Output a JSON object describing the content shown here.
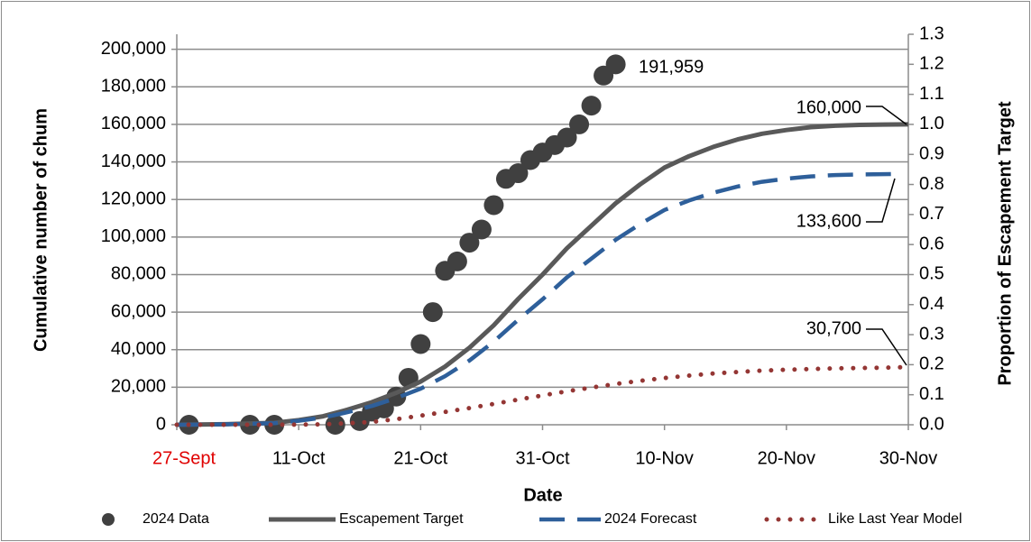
{
  "chart_data": {
    "type": "line",
    "x_label": "Date",
    "y_label": "Cumulative number of chum",
    "y2_label": "Proportion of Escapement Target",
    "xlim": [
      1,
      61
    ],
    "xticks": [
      {
        "value": 1,
        "label": "27-Sept"
      },
      {
        "value": 11,
        "label": "11-Oct"
      },
      {
        "value": 21,
        "label": "21-Oct"
      },
      {
        "value": 31,
        "label": "31-Oct"
      },
      {
        "value": 41,
        "label": "10-Nov"
      },
      {
        "value": 51,
        "label": "20-Nov"
      },
      {
        "value": 61,
        "label": "30-Nov"
      }
    ],
    "first_xtick_color": "#e00000",
    "ylim": [
      0,
      208000
    ],
    "yticks": [
      0,
      {
        "value": 20000,
        "label": "20,000"
      },
      {
        "value": 40000,
        "label": "40,000"
      },
      {
        "value": 60000,
        "label": "60,000"
      },
      {
        "value": 80000,
        "label": "80,000"
      },
      {
        "value": 100000,
        "label": "100,000"
      },
      {
        "value": 120000,
        "label": "120,000"
      },
      {
        "value": 140000,
        "label": "140,000"
      },
      {
        "value": 160000,
        "label": "160,000"
      },
      {
        "value": 180000,
        "label": "180,000"
      },
      {
        "value": 200000,
        "label": "200,000"
      }
    ],
    "y2lim": [
      0,
      1.3
    ],
    "y2ticks": [
      {
        "value": 0,
        "label": "0.0"
      },
      0.1,
      0.2,
      0.3,
      0.4,
      0.5,
      0.6,
      0.7,
      0.8,
      0.9,
      {
        "value": 1,
        "label": "1.0"
      },
      1.1,
      1.2,
      1.3
    ],
    "grid": true,
    "legend": "bottom",
    "series": [
      {
        "name": "2024 Data",
        "style": "scatter",
        "color": "#404040",
        "x": [
          2,
          7,
          9,
          14,
          16,
          17,
          18,
          19,
          20,
          21,
          22,
          23,
          24,
          25,
          26,
          27,
          28,
          29,
          30,
          31,
          32,
          33,
          34,
          35,
          36,
          37
        ],
        "values": [
          0,
          0,
          0,
          0,
          2000,
          7000,
          8700,
          15000,
          25000,
          43000,
          60000,
          82000,
          87000,
          97000,
          104000,
          117000,
          131000,
          134000,
          141000,
          145000,
          149000,
          153000,
          160000,
          170000,
          186000,
          191959
        ]
      },
      {
        "name": "Escapement Target",
        "style": "solid",
        "color": "#595959",
        "x": [
          1,
          5,
          9,
          11,
          13,
          15,
          17,
          19,
          21,
          23,
          25,
          27,
          29,
          31,
          33,
          35,
          37,
          39,
          41,
          43,
          45,
          47,
          49,
          51,
          53,
          55,
          57,
          59,
          61
        ],
        "values": [
          0,
          300,
          1000,
          2500,
          4500,
          8000,
          12000,
          17000,
          23000,
          31000,
          41000,
          53000,
          67000,
          80000,
          94000,
          106000,
          118000,
          128000,
          137000,
          143000,
          148000,
          152000,
          155000,
          157000,
          158500,
          159300,
          159700,
          159900,
          160000
        ]
      },
      {
        "name": "2024 Forecast",
        "style": "dashed",
        "color": "#2e5f9a",
        "x": [
          1,
          5,
          9,
          11,
          13,
          15,
          17,
          19,
          21,
          23,
          25,
          27,
          29,
          31,
          33,
          35,
          37,
          39,
          41,
          43,
          45,
          47,
          49,
          51,
          53,
          55,
          57,
          60
        ],
        "values": [
          0,
          250,
          800,
          2100,
          3800,
          6700,
          10000,
          14200,
          19200,
          25900,
          34200,
          44300,
          55900,
          66800,
          78500,
          88500,
          98500,
          106900,
          114400,
          119400,
          123600,
          126900,
          129400,
          131100,
          132300,
          133000,
          133300,
          133600
        ]
      },
      {
        "name": "Like Last Year Model",
        "style": "dotted",
        "color": "#943634",
        "x": [
          1,
          5,
          9,
          13,
          17,
          19,
          21,
          23,
          25,
          27,
          29,
          31,
          33,
          35,
          37,
          39,
          41,
          43,
          45,
          47,
          49,
          51,
          53,
          55,
          57,
          59,
          61
        ],
        "values": [
          0,
          0,
          0,
          200,
          1500,
          3000,
          4800,
          6800,
          8900,
          11100,
          13400,
          15600,
          17800,
          19800,
          21700,
          23400,
          24900,
          26200,
          27300,
          28100,
          28800,
          29300,
          29700,
          30000,
          30200,
          30400,
          30700
        ]
      }
    ],
    "annotations": [
      {
        "text": "191,959"
      },
      {
        "text": "160,000"
      },
      {
        "text": "133,600"
      },
      {
        "text": "30,700"
      }
    ]
  }
}
